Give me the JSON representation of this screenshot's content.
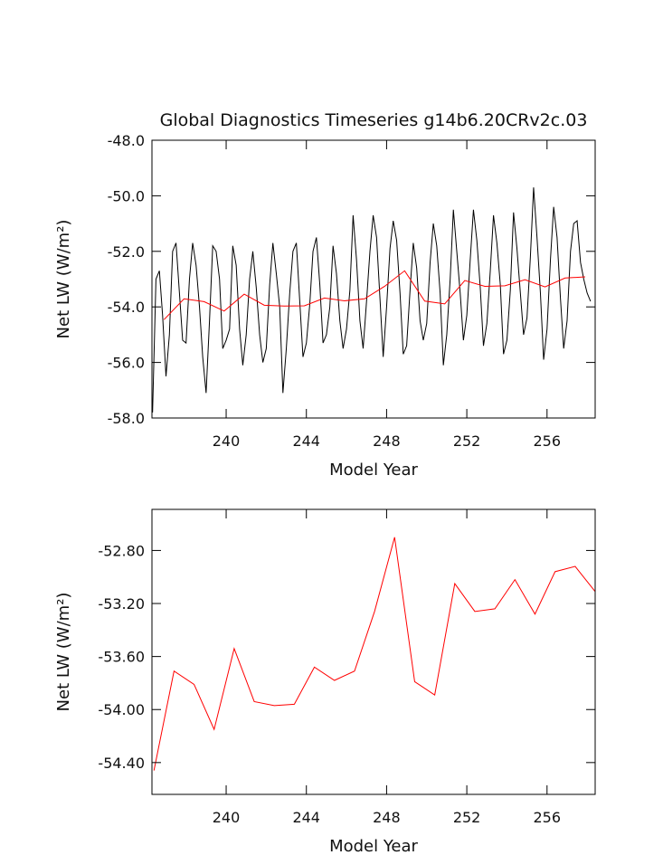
{
  "chart_data": [
    {
      "type": "line",
      "title": "Global Diagnostics Timeseries g14b6.20CRv2c.03",
      "xlabel": "Model Year",
      "ylabel": "Net LW (W/m²)",
      "xlim": [
        236.3,
        258.4
      ],
      "xticks": [
        240,
        244,
        248,
        252,
        256
      ],
      "ylim": [
        -58,
        -48
      ],
      "yticks": [
        {
          "value": -58,
          "label": "-58.0"
        },
        {
          "value": -56,
          "label": "-56.0"
        },
        {
          "value": -54,
          "label": "-54.0"
        },
        {
          "value": -52,
          "label": "-52.0"
        },
        {
          "value": -50,
          "label": "-50.0"
        },
        {
          "value": -48,
          "label": "-48.0"
        }
      ],
      "series": [
        {
          "color": "#000000",
          "x": [
            236.33,
            236.5,
            236.67,
            236.83,
            237,
            237.17,
            237.33,
            237.5,
            237.67,
            237.83,
            238,
            238.17,
            238.33,
            238.5,
            238.67,
            238.83,
            239,
            239.17,
            239.33,
            239.5,
            239.67,
            239.83,
            240,
            240.17,
            240.33,
            240.5,
            240.67,
            240.83,
            241,
            241.17,
            241.33,
            241.5,
            241.67,
            241.83,
            242,
            242.17,
            242.33,
            242.5,
            242.67,
            242.83,
            243,
            243.17,
            243.33,
            243.5,
            243.67,
            243.83,
            244,
            244.17,
            244.33,
            244.5,
            244.67,
            244.83,
            245,
            245.17,
            245.33,
            245.5,
            245.67,
            245.83,
            246,
            246.17,
            246.33,
            246.5,
            246.67,
            246.83,
            247,
            247.17,
            247.33,
            247.5,
            247.67,
            247.83,
            248,
            248.17,
            248.33,
            248.5,
            248.67,
            248.83,
            249,
            249.17,
            249.33,
            249.5,
            249.67,
            249.83,
            250,
            250.17,
            250.33,
            250.5,
            250.67,
            250.83,
            251,
            251.17,
            251.33,
            251.5,
            251.67,
            251.83,
            252,
            252.17,
            252.33,
            252.5,
            252.67,
            252.83,
            253,
            253.17,
            253.33,
            253.5,
            253.67,
            253.83,
            254,
            254.17,
            254.33,
            254.5,
            254.67,
            254.83,
            255,
            255.17,
            255.33,
            255.5,
            255.67,
            255.83,
            256,
            256.17,
            256.33,
            256.5,
            256.67,
            256.83,
            257,
            257.17,
            257.33,
            257.5,
            257.67,
            257.83,
            258,
            258.17
          ],
          "values": [
            -57.8,
            -53.0,
            -52.7,
            -54.3,
            -56.5,
            -55.0,
            -52.0,
            -51.7,
            -53.5,
            -55.2,
            -55.3,
            -53.0,
            -51.7,
            -52.5,
            -54.0,
            -55.8,
            -57.1,
            -54.5,
            -51.8,
            -52.0,
            -53.0,
            -55.5,
            -55.2,
            -54.8,
            -51.8,
            -52.5,
            -54.8,
            -56.1,
            -55.0,
            -53.0,
            -52.0,
            -53.3,
            -55.0,
            -56.0,
            -55.5,
            -53.2,
            -51.7,
            -52.8,
            -54.0,
            -57.1,
            -55.5,
            -53.5,
            -52.0,
            -51.7,
            -53.8,
            -55.8,
            -55.3,
            -53.9,
            -52.0,
            -51.5,
            -53.2,
            -55.3,
            -55.0,
            -54.0,
            -51.8,
            -52.8,
            -54.5,
            -55.5,
            -54.8,
            -53.4,
            -50.7,
            -52.3,
            -54.5,
            -55.5,
            -53.8,
            -52.0,
            -50.7,
            -51.5,
            -53.7,
            -55.8,
            -54.0,
            -51.9,
            -50.9,
            -51.6,
            -53.5,
            -55.7,
            -55.4,
            -53.4,
            -51.7,
            -52.6,
            -54.5,
            -55.2,
            -54.6,
            -52.4,
            -51.0,
            -51.8,
            -53.5,
            -56.1,
            -55.0,
            -53.0,
            -50.5,
            -52.0,
            -53.5,
            -55.2,
            -54.3,
            -52.3,
            -50.5,
            -51.6,
            -53.3,
            -55.4,
            -54.6,
            -52.7,
            -50.7,
            -51.7,
            -53.2,
            -55.7,
            -55.2,
            -53.4,
            -50.6,
            -51.9,
            -53.5,
            -55.0,
            -54.4,
            -52.2,
            -49.7,
            -51.5,
            -53.5,
            -55.9,
            -54.8,
            -52.3,
            -50.4,
            -51.5,
            -53.7,
            -55.5,
            -54.5,
            -52.0,
            -51.0,
            -50.9,
            -52.4,
            -53.0,
            -53.5,
            -53.8
          ]
        },
        {
          "color": "#ff0000",
          "x": [
            236.9,
            237.9,
            238.9,
            239.9,
            240.9,
            241.9,
            242.9,
            243.9,
            244.9,
            245.9,
            246.9,
            247.9,
            248.9,
            249.9,
            250.9,
            251.9,
            252.9,
            253.9,
            254.9,
            255.9,
            256.9,
            257.9
          ],
          "values": [
            -54.46,
            -53.71,
            -53.81,
            -54.15,
            -53.54,
            -53.94,
            -53.97,
            -53.96,
            -53.68,
            -53.78,
            -53.71,
            -53.26,
            -52.7,
            -53.79,
            -53.89,
            -53.05,
            -53.26,
            -53.24,
            -53.02,
            -53.28,
            -52.96,
            -52.92
          ]
        }
      ]
    },
    {
      "type": "line",
      "xlabel": "Model Year",
      "ylabel": "Net LW (W/m²)",
      "xlim": [
        236.3,
        258.4
      ],
      "xticks": [
        240,
        244,
        248,
        252,
        256
      ],
      "ylim": [
        -54.64,
        -52.49
      ],
      "yticks": [
        {
          "value": -54.4,
          "label": "-54.40"
        },
        {
          "value": -54,
          "label": "-54.00"
        },
        {
          "value": -53.6,
          "label": "-53.60"
        },
        {
          "value": -53.2,
          "label": "-53.20"
        },
        {
          "value": -52.8,
          "label": "-52.80"
        }
      ],
      "series": [
        {
          "color": "#ff0000",
          "x": [
            236.4,
            237.4,
            238.4,
            239.4,
            240.4,
            241.4,
            242.4,
            243.4,
            244.4,
            245.4,
            246.4,
            247.4,
            248.4,
            249.4,
            250.4,
            251.4,
            252.4,
            253.4,
            254.4,
            255.4,
            256.4,
            257.4,
            258.4
          ],
          "values": [
            -54.46,
            -53.71,
            -53.81,
            -54.15,
            -53.54,
            -53.94,
            -53.97,
            -53.96,
            -53.68,
            -53.78,
            -53.71,
            -53.26,
            -52.7,
            -53.79,
            -53.89,
            -53.05,
            -53.26,
            -53.24,
            -53.02,
            -53.28,
            -52.96,
            -52.92,
            -53.11
          ]
        }
      ]
    }
  ]
}
